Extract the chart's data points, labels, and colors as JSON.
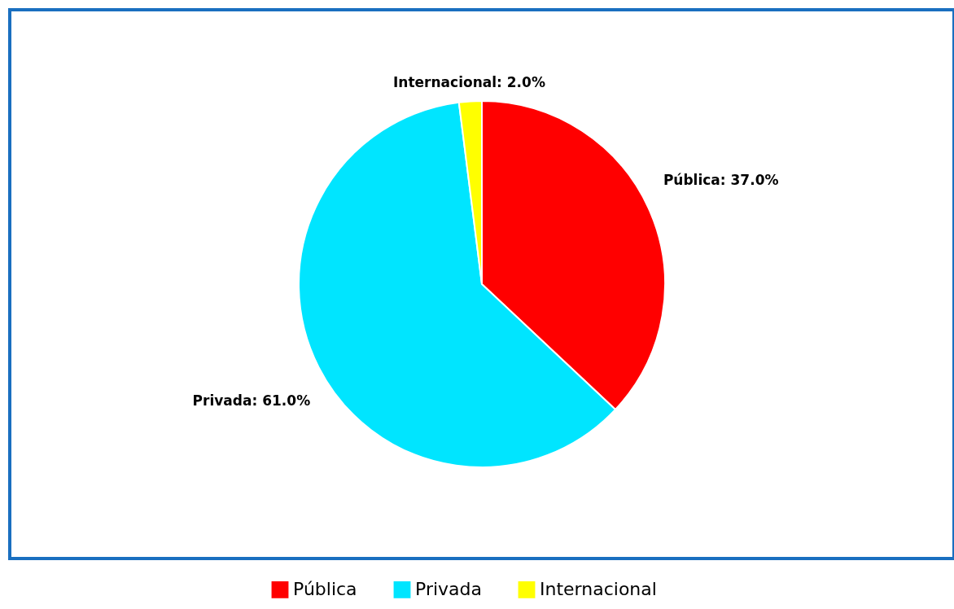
{
  "chart_data": {
    "type": "pie",
    "categories": [
      "Pública",
      "Privada",
      "Internacional"
    ],
    "values": [
      37.0,
      61.0,
      2.0
    ],
    "colors": [
      "#ff0000",
      "#00e5ff",
      "#ffff00"
    ],
    "value_labels": [
      "Pública: 37.0%",
      "Privada: 61.0%",
      "Internacional: 2.0%"
    ],
    "legend": "bottom"
  }
}
